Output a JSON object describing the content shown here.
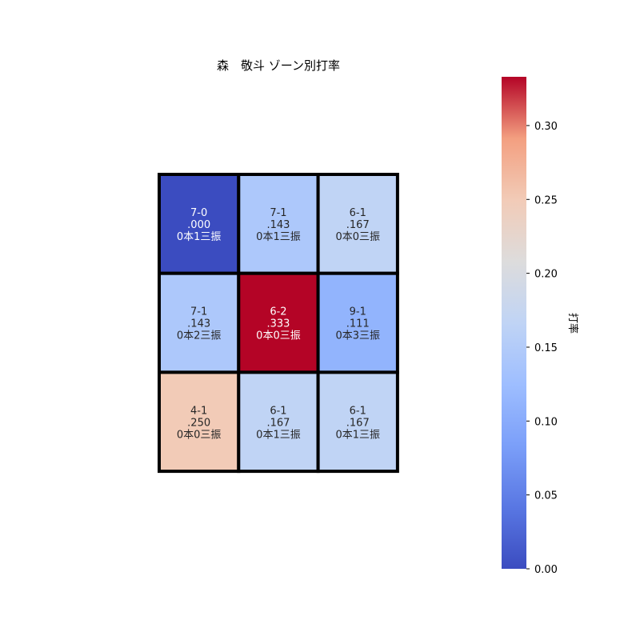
{
  "chart_data": {
    "type": "heatmap",
    "title": "森　敬斗 ゾーン別打率",
    "rows": [
      [
        {
          "record": "7-0",
          "avg_label": ".000",
          "detail": "0本1三振",
          "value": 0.0
        },
        {
          "record": "7-1",
          "avg_label": ".143",
          "detail": "0本1三振",
          "value": 0.143
        },
        {
          "record": "6-1",
          "avg_label": ".167",
          "detail": "0本0三振",
          "value": 0.167
        }
      ],
      [
        {
          "record": "7-1",
          "avg_label": ".143",
          "detail": "0本2三振",
          "value": 0.143
        },
        {
          "record": "6-2",
          "avg_label": ".333",
          "detail": "0本0三振",
          "value": 0.333
        },
        {
          "record": "9-1",
          "avg_label": ".111",
          "detail": "0本3三振",
          "value": 0.111
        }
      ],
      [
        {
          "record": "4-1",
          "avg_label": ".250",
          "detail": "0本0三振",
          "value": 0.25
        },
        {
          "record": "6-1",
          "avg_label": ".167",
          "detail": "0本1三振",
          "value": 0.167
        },
        {
          "record": "6-1",
          "avg_label": ".167",
          "detail": "0本1三振",
          "value": 0.167
        }
      ]
    ],
    "colorbar": {
      "label": "打率",
      "range": [
        0.0,
        0.333
      ],
      "ticks": [
        "0.00",
        "0.05",
        "0.10",
        "0.15",
        "0.20",
        "0.25",
        "0.30"
      ],
      "colormap": "coolwarm"
    },
    "grid_line_color": "#000000"
  }
}
